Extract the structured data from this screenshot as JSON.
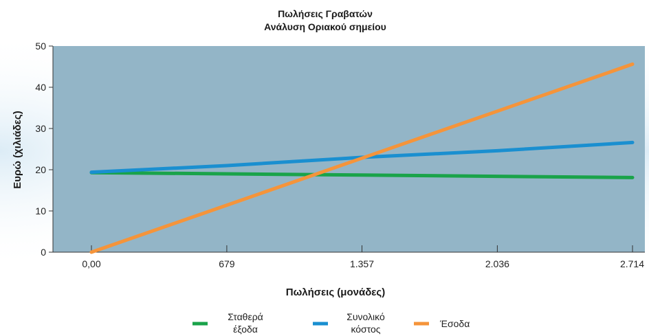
{
  "chart_data": {
    "type": "line",
    "title": [
      "Πωλήσεις Γραβατών",
      "Ανάλυση Οριακού σημείου"
    ],
    "xlabel": "Πωλήσεις (μονάδες)",
    "ylabel": "Ευρώ (χιλιάδες)",
    "x": [
      0,
      679,
      1357,
      2036,
      2714
    ],
    "x_tick_labels": [
      "0,00",
      "679",
      "1.357",
      "2.036",
      "2.714"
    ],
    "xlim": [
      0,
      2714
    ],
    "ylim": [
      0,
      50
    ],
    "y_ticks": [
      0,
      10,
      20,
      30,
      40,
      50
    ],
    "grid": false,
    "legend_position": "bottom",
    "series": [
      {
        "name": "Σταθερά έξοδα",
        "legend_lines": [
          "Σταθερά",
          "έξοδα"
        ],
        "color": "#1aa34a",
        "values": [
          19.3,
          19.0,
          18.7,
          18.4,
          18.1
        ]
      },
      {
        "name": "Συνολικό κόστος",
        "legend_lines": [
          "Συνολικό",
          "κόστος"
        ],
        "color": "#1a8fd0",
        "values": [
          19.4,
          21.0,
          23.0,
          24.6,
          26.6
        ]
      },
      {
        "name": "Έσοδα",
        "legend_lines": [
          "Έσοδα"
        ],
        "color": "#f5943a",
        "values": [
          0,
          11.4,
          22.8,
          34.2,
          45.6
        ]
      }
    ],
    "plot_background": "#93b5c7"
  }
}
